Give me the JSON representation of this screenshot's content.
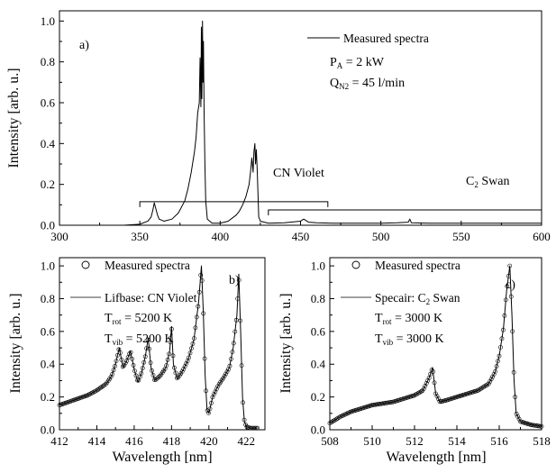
{
  "figure": {
    "panels": [
      {
        "id": "a",
        "label": "a)",
        "ylabel": "Intensity [arb. u.]",
        "xlabel": "",
        "xlim": [
          300,
          600
        ],
        "ylim": [
          0,
          1.05
        ],
        "xticks": [
          300,
          350,
          400,
          450,
          500,
          550,
          600
        ],
        "yticks": [
          0.0,
          0.2,
          0.4,
          0.6,
          0.8,
          1.0
        ],
        "legend": {
          "series_label": "Measured spectra"
        },
        "conditions": {
          "power": {
            "main": "P",
            "sub": "A",
            "value": " = 2 kW"
          },
          "flow": {
            "main": "Q",
            "sub": "N2",
            "value": " = 45 l/min"
          }
        },
        "bands": {
          "cn": {
            "label": "CN Violet"
          },
          "c2": {
            "main": "C",
            "sub": "2",
            "rest": " Swan"
          }
        }
      },
      {
        "id": "b",
        "label": "b)",
        "ylabel": "Intensity [arb. u.]",
        "xlabel": "Wavelength [nm]",
        "xlim": [
          412,
          423
        ],
        "ylim": [
          0,
          1.05
        ],
        "xticks": [
          412,
          414,
          416,
          418,
          420,
          422
        ],
        "yticks": [
          0.0,
          0.2,
          0.4,
          0.6,
          0.8,
          1.0
        ],
        "legend": {
          "measured": "Measured spectra",
          "fit": "Lifbase: CN Violet"
        },
        "temps": {
          "rot": {
            "main": "T",
            "sub": "rot",
            "value": " = 5200 K"
          },
          "vib": {
            "main": "T",
            "sub": "vib",
            "value": " = 5200 K"
          }
        }
      },
      {
        "id": "c",
        "label": "c)",
        "ylabel": "Intensity [arb. u.]",
        "xlabel": "Wavelength [nm]",
        "xlim": [
          508,
          518
        ],
        "ylim": [
          0,
          1.05
        ],
        "xticks": [
          508,
          510,
          512,
          514,
          516,
          518
        ],
        "yticks": [
          0.0,
          0.2,
          0.4,
          0.6,
          0.8,
          1.0
        ],
        "legend": {
          "measured": "Measured spectra",
          "fit_main": "Specair: C",
          "fit_sub": "2",
          "fit_rest": " Swan"
        },
        "temps": {
          "rot": {
            "main": "T",
            "sub": "rot",
            "value": " = 3000 K"
          },
          "vib": {
            "main": "T",
            "sub": "vib",
            "value": " = 3000 K"
          }
        }
      }
    ]
  },
  "chart_data": [
    {
      "type": "line",
      "panel": "a",
      "series": [
        {
          "name": "Measured spectra",
          "x": [
            300,
            340,
            350,
            355,
            357,
            358,
            359,
            360,
            361,
            362,
            365,
            370,
            374,
            378,
            380,
            382,
            384,
            385,
            386,
            387,
            387.5,
            388,
            388.3,
            388.6,
            389,
            389.3,
            389.6,
            390,
            390.5,
            391,
            392,
            395,
            400,
            405,
            410,
            412,
            414,
            416,
            417,
            418,
            419,
            419.7,
            420.5,
            421,
            421.6,
            422,
            422.5,
            423,
            424,
            425,
            430,
            440,
            450,
            452,
            455,
            460,
            470,
            500,
            510,
            517,
            518,
            519,
            530,
            560,
            600
          ],
          "y": [
            0.0,
            0.0,
            0.005,
            0.02,
            0.04,
            0.07,
            0.11,
            0.08,
            0.05,
            0.03,
            0.02,
            0.03,
            0.06,
            0.12,
            0.18,
            0.26,
            0.36,
            0.43,
            0.55,
            0.6,
            0.82,
            0.58,
            0.97,
            0.62,
            1.0,
            0.7,
            0.9,
            0.55,
            0.3,
            0.12,
            0.03,
            0.01,
            0.01,
            0.02,
            0.05,
            0.07,
            0.1,
            0.14,
            0.17,
            0.2,
            0.27,
            0.33,
            0.26,
            0.36,
            0.4,
            0.3,
            0.37,
            0.28,
            0.04,
            0.02,
            0.01,
            0.012,
            0.02,
            0.03,
            0.015,
            0.012,
            0.01,
            0.01,
            0.012,
            0.015,
            0.03,
            0.012,
            0.01,
            0.01,
            0.01
          ]
        }
      ],
      "annotations": [
        {
          "text": "CN Violet",
          "bracket_x": [
            350,
            467
          ]
        },
        {
          "text": "C2 Swan",
          "bracket_x": [
            430,
            600
          ]
        }
      ]
    },
    {
      "type": "line",
      "panel": "b",
      "series": [
        {
          "name": "Measured spectra",
          "marker": "circle",
          "x": [
            412,
            412.5,
            413,
            413.5,
            414,
            414.5,
            414.8,
            415.0,
            415.2,
            415.4,
            415.6,
            415.8,
            416.0,
            416.2,
            416.4,
            416.6,
            416.75,
            416.9,
            417.1,
            417.4,
            417.7,
            417.9,
            418.0,
            418.1,
            418.3,
            418.6,
            418.9,
            419.2,
            419.45,
            419.6,
            419.7,
            419.8,
            419.9,
            420.0,
            420.2,
            420.5,
            420.8,
            421.1,
            421.3,
            421.5,
            421.6,
            421.7,
            421.8,
            421.9,
            422.0,
            422.2,
            422.4,
            422.6
          ],
          "y": [
            0.15,
            0.17,
            0.19,
            0.21,
            0.24,
            0.28,
            0.33,
            0.4,
            0.5,
            0.38,
            0.42,
            0.48,
            0.37,
            0.29,
            0.35,
            0.45,
            0.56,
            0.38,
            0.3,
            0.33,
            0.38,
            0.48,
            0.63,
            0.4,
            0.31,
            0.36,
            0.43,
            0.55,
            0.78,
            1.0,
            0.72,
            0.33,
            0.12,
            0.1,
            0.2,
            0.27,
            0.32,
            0.38,
            0.5,
            0.7,
            0.95,
            0.6,
            0.2,
            0.05,
            0.02,
            0.01,
            0.01,
            0.01
          ]
        },
        {
          "name": "Lifbase: CN Violet",
          "x": [
            412,
            412.5,
            413,
            413.5,
            414,
            414.5,
            414.8,
            415.0,
            415.2,
            415.4,
            415.6,
            415.8,
            416.0,
            416.2,
            416.4,
            416.6,
            416.75,
            416.9,
            417.1,
            417.4,
            417.7,
            417.9,
            418.0,
            418.1,
            418.3,
            418.6,
            418.9,
            419.2,
            419.45,
            419.6,
            419.7,
            419.8,
            419.9,
            420.0,
            420.2,
            420.5,
            420.8,
            421.1,
            421.3,
            421.5,
            421.6,
            421.7,
            421.8,
            421.9,
            422.0,
            422.2,
            422.4,
            422.6
          ],
          "y": [
            0.15,
            0.17,
            0.19,
            0.21,
            0.24,
            0.28,
            0.33,
            0.4,
            0.5,
            0.38,
            0.42,
            0.48,
            0.37,
            0.29,
            0.35,
            0.45,
            0.56,
            0.38,
            0.3,
            0.33,
            0.38,
            0.48,
            0.63,
            0.4,
            0.31,
            0.36,
            0.43,
            0.55,
            0.78,
            1.0,
            0.72,
            0.33,
            0.12,
            0.1,
            0.2,
            0.27,
            0.32,
            0.38,
            0.5,
            0.7,
            0.95,
            0.6,
            0.2,
            0.05,
            0.02,
            0.01,
            0.01,
            0.01
          ]
        }
      ]
    },
    {
      "type": "line",
      "panel": "c",
      "series": [
        {
          "name": "Measured spectra",
          "marker": "circle",
          "x": [
            508,
            508.5,
            509,
            509.5,
            510,
            510.5,
            511,
            511.5,
            512,
            512.4,
            512.7,
            512.85,
            513.0,
            513.2,
            513.5,
            514,
            514.5,
            515,
            515.5,
            515.8,
            516.0,
            516.2,
            516.35,
            516.5,
            516.6,
            516.7,
            516.8,
            517,
            517.5,
            518
          ],
          "y": [
            0.04,
            0.08,
            0.11,
            0.13,
            0.15,
            0.16,
            0.17,
            0.19,
            0.21,
            0.24,
            0.32,
            0.38,
            0.22,
            0.17,
            0.18,
            0.2,
            0.22,
            0.24,
            0.28,
            0.35,
            0.45,
            0.62,
            0.85,
            1.0,
            0.7,
            0.3,
            0.1,
            0.05,
            0.03,
            0.02
          ]
        },
        {
          "name": "Specair: C2 Swan",
          "x": [
            508,
            508.5,
            509,
            509.5,
            510,
            510.5,
            511,
            511.5,
            512,
            512.4,
            512.7,
            512.85,
            513.0,
            513.2,
            513.5,
            514,
            514.5,
            515,
            515.5,
            515.8,
            516.0,
            516.2,
            516.35,
            516.5,
            516.6,
            516.7,
            516.8,
            517,
            517.5,
            518
          ],
          "y": [
            0.04,
            0.08,
            0.11,
            0.13,
            0.15,
            0.16,
            0.17,
            0.19,
            0.21,
            0.24,
            0.32,
            0.38,
            0.22,
            0.17,
            0.18,
            0.2,
            0.22,
            0.24,
            0.28,
            0.35,
            0.45,
            0.62,
            0.85,
            1.0,
            0.7,
            0.3,
            0.1,
            0.05,
            0.03,
            0.02
          ]
        }
      ]
    }
  ]
}
